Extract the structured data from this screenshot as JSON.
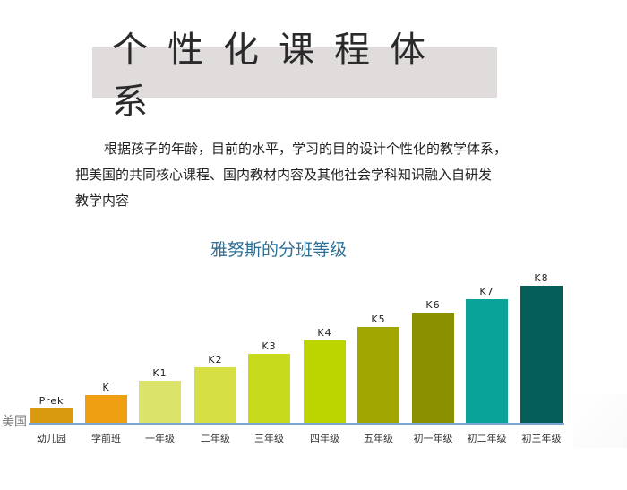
{
  "header": {
    "title": "个性化课程体系"
  },
  "intro": {
    "lines": [
      "根据孩子的年龄，目前的水平，学习的目的设计个性化的教学体系，",
      "把美国的共同核心课程、国内教材内容及其他社会学科知识融入自研发",
      "教学内容"
    ]
  },
  "chart_data": {
    "type": "bar",
    "title": "雅努斯的分班等级",
    "row_label": "美国",
    "categories": [
      "幼儿园",
      "学前班",
      "一年级",
      "二年级",
      "三年级",
      "四年级",
      "五年级",
      "初一年级",
      "初二年级",
      "初三年级"
    ],
    "bar_labels": [
      "Prek",
      "K",
      "K1",
      "K2",
      "K3",
      "K4",
      "K5",
      "K6",
      "K7",
      "K8"
    ],
    "values": [
      1,
      2,
      3,
      4,
      5,
      6,
      7,
      8,
      9,
      10
    ],
    "colors": [
      "#d99a0f",
      "#ef9f12",
      "#dbe36a",
      "#d6e045",
      "#c8da1c",
      "#bcd400",
      "#a2a700",
      "#8a8f00",
      "#0aa39a",
      "#055e58"
    ],
    "xlabel": "",
    "ylabel": "",
    "grid": false,
    "legend": "none"
  },
  "colors": {
    "title_bg": "#e0dcdb",
    "chart_title": "#2d6f95",
    "baseline": "#7aa6d8"
  }
}
